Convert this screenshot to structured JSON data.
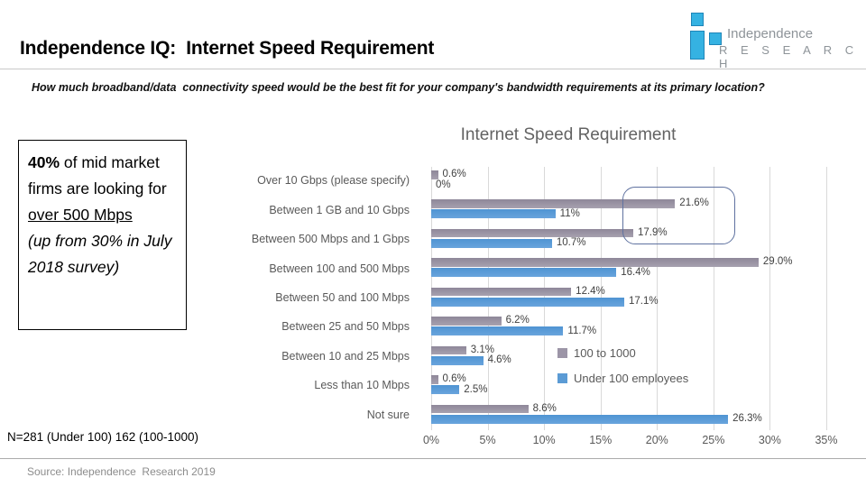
{
  "header": {
    "title": "Independence IQ:  Internet Speed Requirement",
    "logo": {
      "line1": "Independence",
      "line2": "R E S E A R C H",
      "accent_color": "#35b2e2"
    }
  },
  "question": "How much broadband/data  connectivity speed would be the best fit for your company's bandwidth requirements at its primary location?",
  "key_stat": {
    "lead": "40%",
    "body": " of mid market firms are looking for ",
    "highlight": "over 500 Mbps",
    "note": "(up from 30% in July 2018 survey)"
  },
  "chart_data": {
    "type": "bar",
    "orientation": "horizontal",
    "title": "Internet Speed Requirement",
    "categories": [
      "Over 10 Gbps (please specify)",
      "Between 1 GB and 10 Gbps",
      "Between 500 Mbps and 1 Gbps",
      "Between 100 and 500 Mbps",
      "Between 50 and 100 Mbps",
      "Between 25 and 50 Mbps",
      "Between 10 and 25 Mbps",
      "Less than 10 Mbps",
      "Not sure"
    ],
    "series": [
      {
        "name": "100 to 1000",
        "color": "#9c95a7",
        "values": [
          0.6,
          21.6,
          17.9,
          29.0,
          12.4,
          6.2,
          3.1,
          0.6,
          8.6
        ],
        "labels": [
          "0.6%",
          "21.6%",
          "17.9%",
          "29.0%",
          "12.4%",
          "6.2%",
          "3.1%",
          "0.6%",
          "8.6%"
        ]
      },
      {
        "name": "Under 100 employees",
        "color": "#5b9bd5",
        "values": [
          0,
          11,
          10.7,
          16.4,
          17.1,
          11.7,
          4.6,
          2.5,
          26.3
        ],
        "labels": [
          "0%",
          "11%",
          "10.7%",
          "16.4%",
          "17.1%",
          "11.7%",
          "4.6%",
          "2.5%",
          "26.3%"
        ]
      }
    ],
    "x_ticks": [
      "0%",
      "5%",
      "10%",
      "15%",
      "20%",
      "25%",
      "30%",
      "35%"
    ],
    "xlim": [
      0,
      35
    ],
    "grid": true,
    "legend_position": "inside-right",
    "annotation_box_highlights": [
      "21.6%",
      "17.9%"
    ]
  },
  "footnote": "N=281 (Under 100) 162 (100-1000)",
  "source": "Source: Independence  Research 2019"
}
